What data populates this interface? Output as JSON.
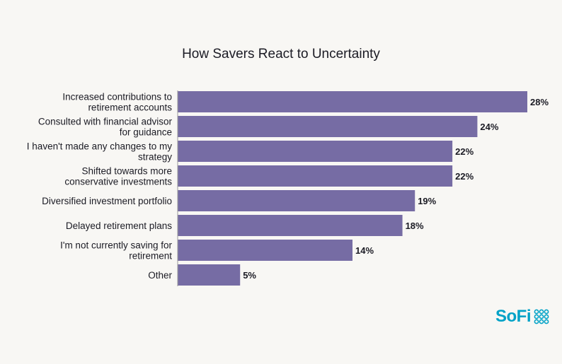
{
  "colors": {
    "bar": "#766ca4",
    "axis": "#9a9a9a",
    "background": "#f8f7f4",
    "brand": "#00a2c7"
  },
  "logo": {
    "text": "SoFi",
    "icon": "sofi-dots-icon"
  },
  "chart_data": {
    "type": "bar",
    "orientation": "horizontal",
    "title": "How Savers React to Uncertainty",
    "categories": [
      [
        "Increased contributions to",
        "retirement accounts"
      ],
      [
        "Consulted with financial advisor",
        "for guidance"
      ],
      [
        "I haven't made any changes to my",
        "strategy"
      ],
      [
        "Shifted towards more",
        "conservative investments"
      ],
      [
        "Diversified investment portfolio"
      ],
      [
        "Delayed retirement plans"
      ],
      [
        "I'm not currently saving for",
        "retirement"
      ],
      [
        "Other"
      ]
    ],
    "values": [
      28,
      24,
      22,
      22,
      19,
      18,
      14,
      5
    ],
    "value_labels": [
      "28%",
      "24%",
      "22%",
      "22%",
      "19%",
      "18%",
      "14%",
      "5%"
    ],
    "unit": "%",
    "xlim": [
      0,
      28
    ],
    "grid": false,
    "legend": "none"
  }
}
